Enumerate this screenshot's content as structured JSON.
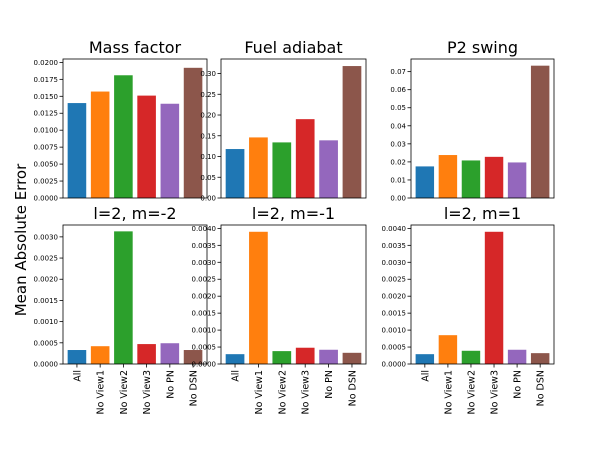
{
  "figure": {
    "ylabel": "Mean Absolute Error"
  },
  "chart_data": [
    {
      "type": "bar",
      "title": "Mass factor",
      "categories": [
        "All",
        "No View1",
        "No View2",
        "No View3",
        "No PN",
        "No DSN"
      ],
      "values": [
        0.014,
        0.0157,
        0.0181,
        0.0151,
        0.0139,
        0.0192
      ],
      "ylim": [
        0,
        0.0205
      ],
      "yticks": [
        0,
        0.0025,
        0.005,
        0.0075,
        0.01,
        0.0125,
        0.015,
        0.0175,
        0.02
      ],
      "ytick_labels": [
        "0.0000",
        "0.0025",
        "0.0050",
        "0.0075",
        "0.0100",
        "0.0125",
        "0.0150",
        "0.0175",
        "0.0200"
      ],
      "colors": [
        "#1f77b4",
        "#ff7f0e",
        "#2ca02c",
        "#d62728",
        "#9467bd",
        "#8c564b"
      ],
      "show_xticklabels": false
    },
    {
      "type": "bar",
      "title": "Fuel adiabat",
      "categories": [
        "All",
        "No View1",
        "No View2",
        "No View3",
        "No PN",
        "No DSN"
      ],
      "values": [
        0.118,
        0.146,
        0.134,
        0.19,
        0.139,
        0.318
      ],
      "ylim": [
        0,
        0.335
      ],
      "yticks": [
        0,
        0.05,
        0.1,
        0.15,
        0.2,
        0.25,
        0.3
      ],
      "ytick_labels": [
        "0.00",
        "0.05",
        "0.10",
        "0.15",
        "0.20",
        "0.25",
        "0.30"
      ],
      "colors": [
        "#1f77b4",
        "#ff7f0e",
        "#2ca02c",
        "#d62728",
        "#9467bd",
        "#8c564b"
      ],
      "show_xticklabels": false
    },
    {
      "type": "bar",
      "title": "P2 swing",
      "categories": [
        "All",
        "No View1",
        "No View2",
        "No View3",
        "No PN",
        "No DSN"
      ],
      "values": [
        0.0175,
        0.0238,
        0.0208,
        0.0228,
        0.0197,
        0.0733
      ],
      "ylim": [
        0,
        0.077
      ],
      "yticks": [
        0,
        0.01,
        0.02,
        0.03,
        0.04,
        0.05,
        0.06,
        0.07
      ],
      "ytick_labels": [
        "0.00",
        "0.01",
        "0.02",
        "0.03",
        "0.04",
        "0.05",
        "0.06",
        "0.07"
      ],
      "colors": [
        "#1f77b4",
        "#ff7f0e",
        "#2ca02c",
        "#d62728",
        "#9467bd",
        "#8c564b"
      ],
      "show_xticklabels": false
    },
    {
      "type": "bar",
      "title": "l=2, m=-2",
      "categories": [
        "All",
        "No View1",
        "No View2",
        "No View3",
        "No PN",
        "No DSN"
      ],
      "values": [
        0.00033,
        0.00042,
        0.00313,
        0.00047,
        0.00049,
        0.00033
      ],
      "ylim": [
        0,
        0.00328
      ],
      "yticks": [
        0,
        0.0005,
        0.001,
        0.0015,
        0.002,
        0.0025,
        0.003
      ],
      "ytick_labels": [
        "0.0000",
        "0.0005",
        "0.0010",
        "0.0015",
        "0.0020",
        "0.0025",
        "0.0030"
      ],
      "colors": [
        "#1f77b4",
        "#ff7f0e",
        "#2ca02c",
        "#d62728",
        "#9467bd",
        "#8c564b"
      ],
      "show_xticklabels": true
    },
    {
      "type": "bar",
      "title": "l=2, m=-1",
      "categories": [
        "All",
        "No View1",
        "No View2",
        "No View3",
        "No PN",
        "No DSN"
      ],
      "values": [
        0.00029,
        0.0039,
        0.00038,
        0.00048,
        0.00042,
        0.00033
      ],
      "ylim": [
        0,
        0.0041
      ],
      "yticks": [
        0,
        0.0005,
        0.001,
        0.0015,
        0.002,
        0.0025,
        0.003,
        0.0035,
        0.004
      ],
      "ytick_labels": [
        "0.0000",
        "0.0005",
        "0.0010",
        "0.0015",
        "0.0020",
        "0.0025",
        "0.0030",
        "0.0035",
        "0.0040"
      ],
      "colors": [
        "#1f77b4",
        "#ff7f0e",
        "#2ca02c",
        "#d62728",
        "#9467bd",
        "#8c564b"
      ],
      "show_xticklabels": true
    },
    {
      "type": "bar",
      "title": "l=2, m=1",
      "categories": [
        "All",
        "No View1",
        "No View2",
        "No View3",
        "No PN",
        "No DSN"
      ],
      "values": [
        0.00029,
        0.00085,
        0.00039,
        0.0039,
        0.00042,
        0.00032
      ],
      "ylim": [
        0,
        0.0041
      ],
      "yticks": [
        0,
        0.0005,
        0.001,
        0.0015,
        0.002,
        0.0025,
        0.003,
        0.0035,
        0.004
      ],
      "ytick_labels": [
        "0.0000",
        "0.0005",
        "0.0010",
        "0.0015",
        "0.0020",
        "0.0025",
        "0.0030",
        "0.0035",
        "0.0040"
      ],
      "colors": [
        "#1f77b4",
        "#ff7f0e",
        "#2ca02c",
        "#d62728",
        "#9467bd",
        "#8c564b"
      ],
      "show_xticklabels": true
    }
  ]
}
